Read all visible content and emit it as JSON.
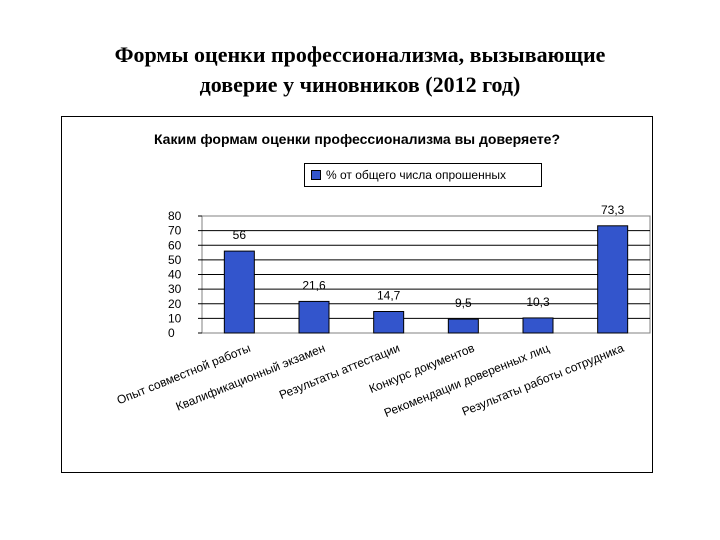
{
  "slide": {
    "title_line1": "Формы оценки профессионализма, вызывающие",
    "title_line2": "доверие у чиновников (2012 год)"
  },
  "chart_data": {
    "type": "bar",
    "title": "Каким формам оценки профессионализма вы доверяете?",
    "categories": [
      "Опыт совместной работы",
      "Квалификационный экзамен",
      "Результаты аттестации",
      "Конкурс документов",
      "Рекомендации доверенных лиц",
      "Результаты работы сотрудника"
    ],
    "series": [
      {
        "name": "% от общего числа опрошенных",
        "values": [
          56,
          21.6,
          14.7,
          9.5,
          10.3,
          73.3
        ],
        "value_labels": [
          "56",
          "21,6",
          "14,7",
          "9,5",
          "10,3",
          "73,3"
        ],
        "color": "#3355cc"
      }
    ],
    "ylim": [
      0,
      80
    ],
    "yticks": [
      "80",
      "70",
      "60",
      "50",
      "40",
      "30",
      "20",
      "10",
      "0"
    ],
    "grid": true,
    "legend_position": "top"
  }
}
